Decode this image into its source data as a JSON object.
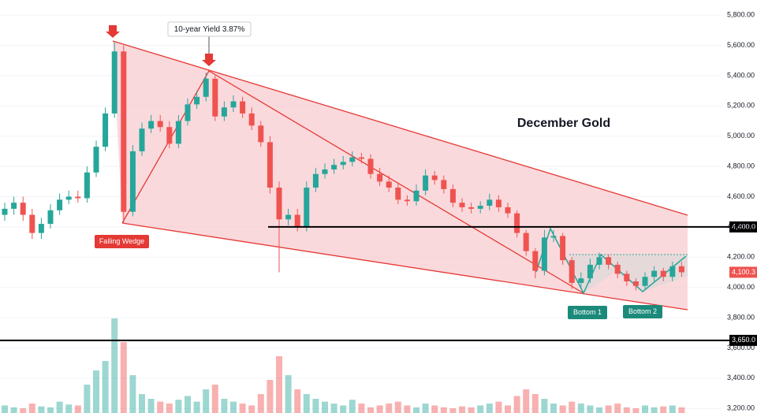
{
  "chart_data": {
    "type": "candlestick",
    "title": "December Gold",
    "ylim": [
      3170,
      5900
    ],
    "yticks": [
      {
        "value": 5800,
        "label": "5,800.00"
      },
      {
        "value": 5600,
        "label": "5,600.00"
      },
      {
        "value": 5400,
        "label": "5,400.00"
      },
      {
        "value": 5200,
        "label": "5,200.00"
      },
      {
        "value": 5000,
        "label": "5,000.00"
      },
      {
        "value": 4800,
        "label": "4,800.00"
      },
      {
        "value": 4600,
        "label": "4,600.00"
      },
      {
        "value": 4400,
        "label": "4,400.00"
      },
      {
        "value": 4200,
        "label": "4,200.00"
      },
      {
        "value": 4000,
        "label": "4,000.00"
      },
      {
        "value": 3800,
        "label": "3,800.00"
      },
      {
        "value": 3600,
        "label": "3,600.00"
      },
      {
        "value": 3400,
        "label": "3,400.00"
      },
      {
        "value": 3200,
        "label": "3,200.00"
      }
    ],
    "grid": true,
    "up_color": "#26a69a",
    "down_color": "#ef5350",
    "open": [
      4480,
      4520,
      4560,
      4480,
      4360,
      4420,
      4510,
      4580,
      4600,
      4590,
      4760,
      4930,
      5150,
      5560,
      4500,
      4900,
      5050,
      5100,
      5060,
      4950,
      5100,
      5210,
      5260,
      5380,
      5130,
      5190,
      5230,
      5150,
      5070,
      4960,
      4660,
      4450,
      4480,
      4400,
      4660,
      4750,
      4780,
      4810,
      4830,
      4860,
      4850,
      4750,
      4700,
      4660,
      4580,
      4570,
      4640,
      4740,
      4710,
      4650,
      4560,
      4530,
      4520,
      4540,
      4580,
      4530,
      4490,
      4360,
      4240,
      4110,
      4330,
      4340,
      4180,
      4030,
      4060,
      4150,
      4200,
      4150,
      4090,
      4040,
      4010,
      4070,
      4110,
      4070,
      4140
    ],
    "high": [
      4560,
      4600,
      4600,
      4520,
      4460,
      4550,
      4620,
      4640,
      4640,
      4800,
      4970,
      5190,
      5620,
      5600,
      4940,
      5090,
      5140,
      5140,
      5100,
      5140,
      5250,
      5300,
      5420,
      5400,
      5230,
      5270,
      5260,
      5190,
      5100,
      5000,
      4700,
      4520,
      4520,
      4700,
      4790,
      4820,
      4850,
      4870,
      4900,
      4890,
      4880,
      4790,
      4740,
      4690,
      4610,
      4680,
      4780,
      4770,
      4740,
      4680,
      4590,
      4560,
      4570,
      4620,
      4610,
      4560,
      4510,
      4380,
      4260,
      4380,
      4380,
      4360,
      4200,
      4100,
      4190,
      4230,
      4220,
      4170,
      4110,
      4060,
      4100,
      4140,
      4130,
      4170,
      4170
    ],
    "low": [
      4440,
      4480,
      4440,
      4320,
      4320,
      4390,
      4480,
      4550,
      4560,
      4560,
      4730,
      4900,
      5120,
      4430,
      4470,
      4870,
      5020,
      5030,
      4920,
      4920,
      5070,
      5180,
      5230,
      5100,
      5100,
      5160,
      5120,
      5040,
      4930,
      4620,
      4100,
      4410,
      4370,
      4370,
      4630,
      4720,
      4750,
      4780,
      4800,
      4820,
      4720,
      4670,
      4630,
      4550,
      4540,
      4540,
      4610,
      4680,
      4620,
      4530,
      4500,
      4490,
      4490,
      4510,
      4500,
      4460,
      4330,
      4210,
      4060,
      4080,
      4300,
      4150,
      3990,
      4000,
      4030,
      4120,
      4120,
      4060,
      4010,
      3980,
      3990,
      4040,
      4040,
      4040,
      4070
    ],
    "close": [
      4520,
      4560,
      4480,
      4360,
      4420,
      4510,
      4580,
      4600,
      4590,
      4760,
      4930,
      5150,
      5560,
      4500,
      4900,
      5050,
      5100,
      5060,
      4950,
      5100,
      5210,
      5260,
      5380,
      5130,
      5190,
      5230,
      5150,
      5070,
      4960,
      4660,
      4450,
      4480,
      4400,
      4660,
      4750,
      4780,
      4810,
      4830,
      4860,
      4850,
      4750,
      4700,
      4660,
      4580,
      4570,
      4640,
      4740,
      4710,
      4650,
      4560,
      4530,
      4520,
      4540,
      4580,
      4530,
      4490,
      4360,
      4240,
      4110,
      4330,
      4340,
      4180,
      4030,
      4060,
      4150,
      4200,
      4150,
      4090,
      4040,
      4010,
      4070,
      4110,
      4070,
      4140,
      4100.3
    ],
    "volume": [
      8,
      6,
      5,
      10,
      7,
      6,
      12,
      9,
      8,
      30,
      45,
      55,
      100,
      75,
      40,
      20,
      15,
      12,
      10,
      14,
      18,
      12,
      25,
      30,
      15,
      12,
      10,
      8,
      20,
      35,
      60,
      40,
      25,
      20,
      15,
      12,
      10,
      8,
      14,
      10,
      6,
      8,
      10,
      12,
      8,
      6,
      10,
      8,
      6,
      5,
      7,
      6,
      8,
      10,
      12,
      8,
      18,
      25,
      20,
      15,
      10,
      8,
      12,
      10,
      8,
      6,
      8,
      10,
      6,
      5,
      8,
      6,
      7,
      8,
      6
    ],
    "levels": [
      {
        "value": 4400,
        "label": "4,400.0"
      },
      {
        "value": 3650,
        "label": "3,650.0"
      }
    ],
    "last_price": {
      "value": 4100.3,
      "label": "4,100.3"
    },
    "annotations": [
      "10-year Yield 3.87%",
      "Falling Wedge",
      "Bottom 1",
      "Bottom 2"
    ]
  }
}
